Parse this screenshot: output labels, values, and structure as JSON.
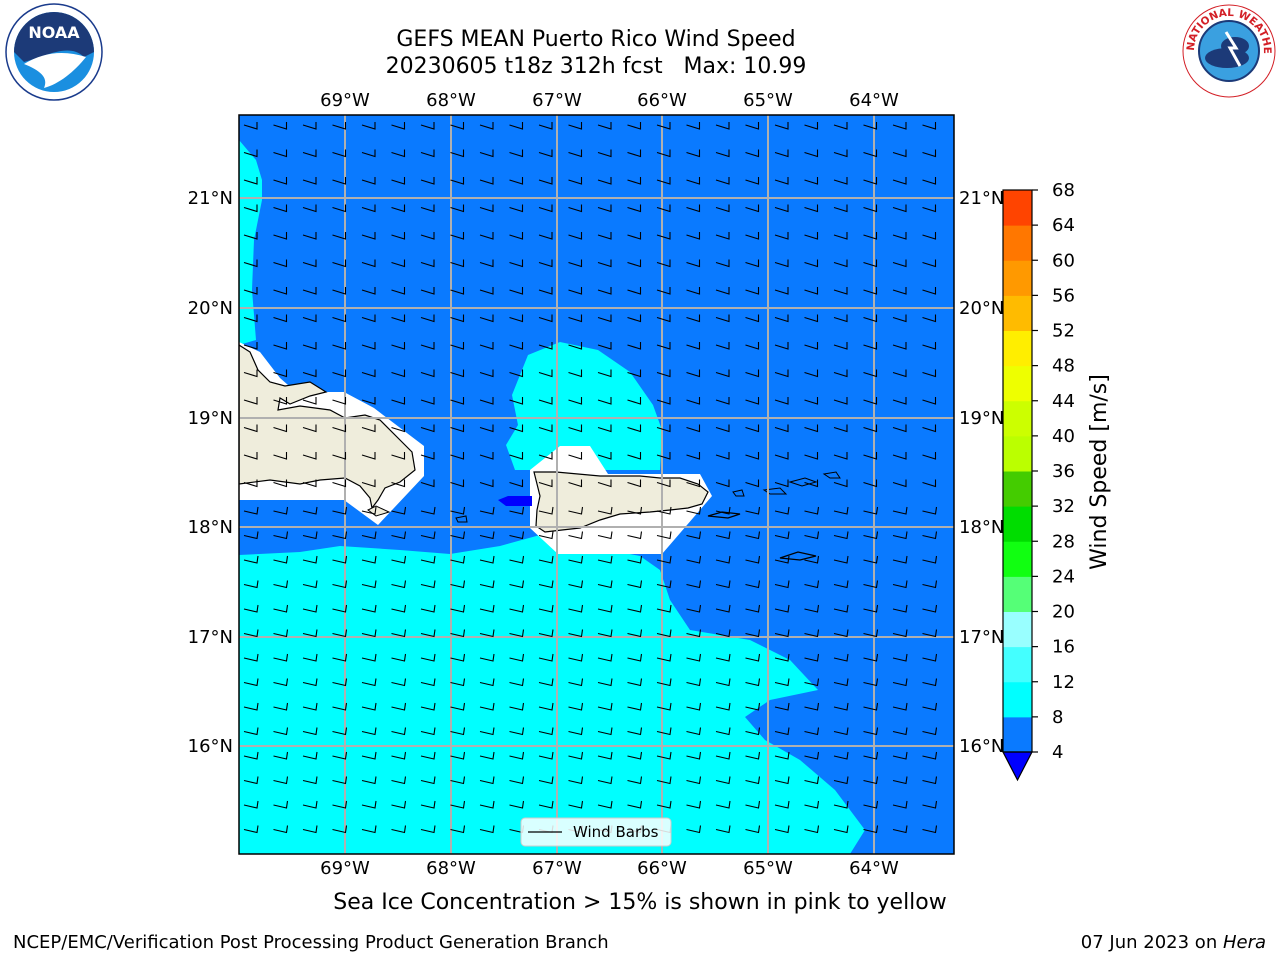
{
  "title": {
    "line1": "GEFS MEAN Puerto Rico Wind Speed",
    "line2": "20230605 t18z 312h fcst   Max: 10.99"
  },
  "logos": {
    "left": "NOAA",
    "right": "NATIONAL WEATHER SERVICE"
  },
  "map": {
    "lon_ticks": [
      "69°W",
      "68°W",
      "67°W",
      "66°W",
      "65°W",
      "64°W"
    ],
    "lat_ticks": [
      "21°N",
      "20°N",
      "19°N",
      "18°N",
      "17°N",
      "16°N"
    ],
    "legend_label": "Wind Barbs",
    "colors": {
      "field_4_8": "#0a7aff",
      "field_8_12": "#00ffff",
      "land": "#efeddc",
      "max_core": "#0000ff"
    }
  },
  "colorbar": {
    "label": "Wind Speed [m/s]",
    "ticks": [
      "4",
      "8",
      "12",
      "16",
      "20",
      "24",
      "28",
      "32",
      "36",
      "40",
      "44",
      "48",
      "52",
      "56",
      "60",
      "64",
      "68"
    ],
    "colors": [
      "#0a7aff",
      "#00ffff",
      "#44ffff",
      "#99ffff",
      "#55ff77",
      "#11ff11",
      "#00dd00",
      "#44cc00",
      "#bbff00",
      "#ccff00",
      "#eeff00",
      "#ffee00",
      "#ffbb00",
      "#ff9900",
      "#ff7700",
      "#ff4400",
      "#ff1100"
    ],
    "extend_color": "#0000ff"
  },
  "caption": "Sea Ice Concentration > 15% is shown in pink to yellow",
  "footer": {
    "left": "NCEP/EMC/Verification Post Processing Product Generation Branch",
    "right_date": "07 Jun 2023 on ",
    "right_host": "Hera"
  }
}
